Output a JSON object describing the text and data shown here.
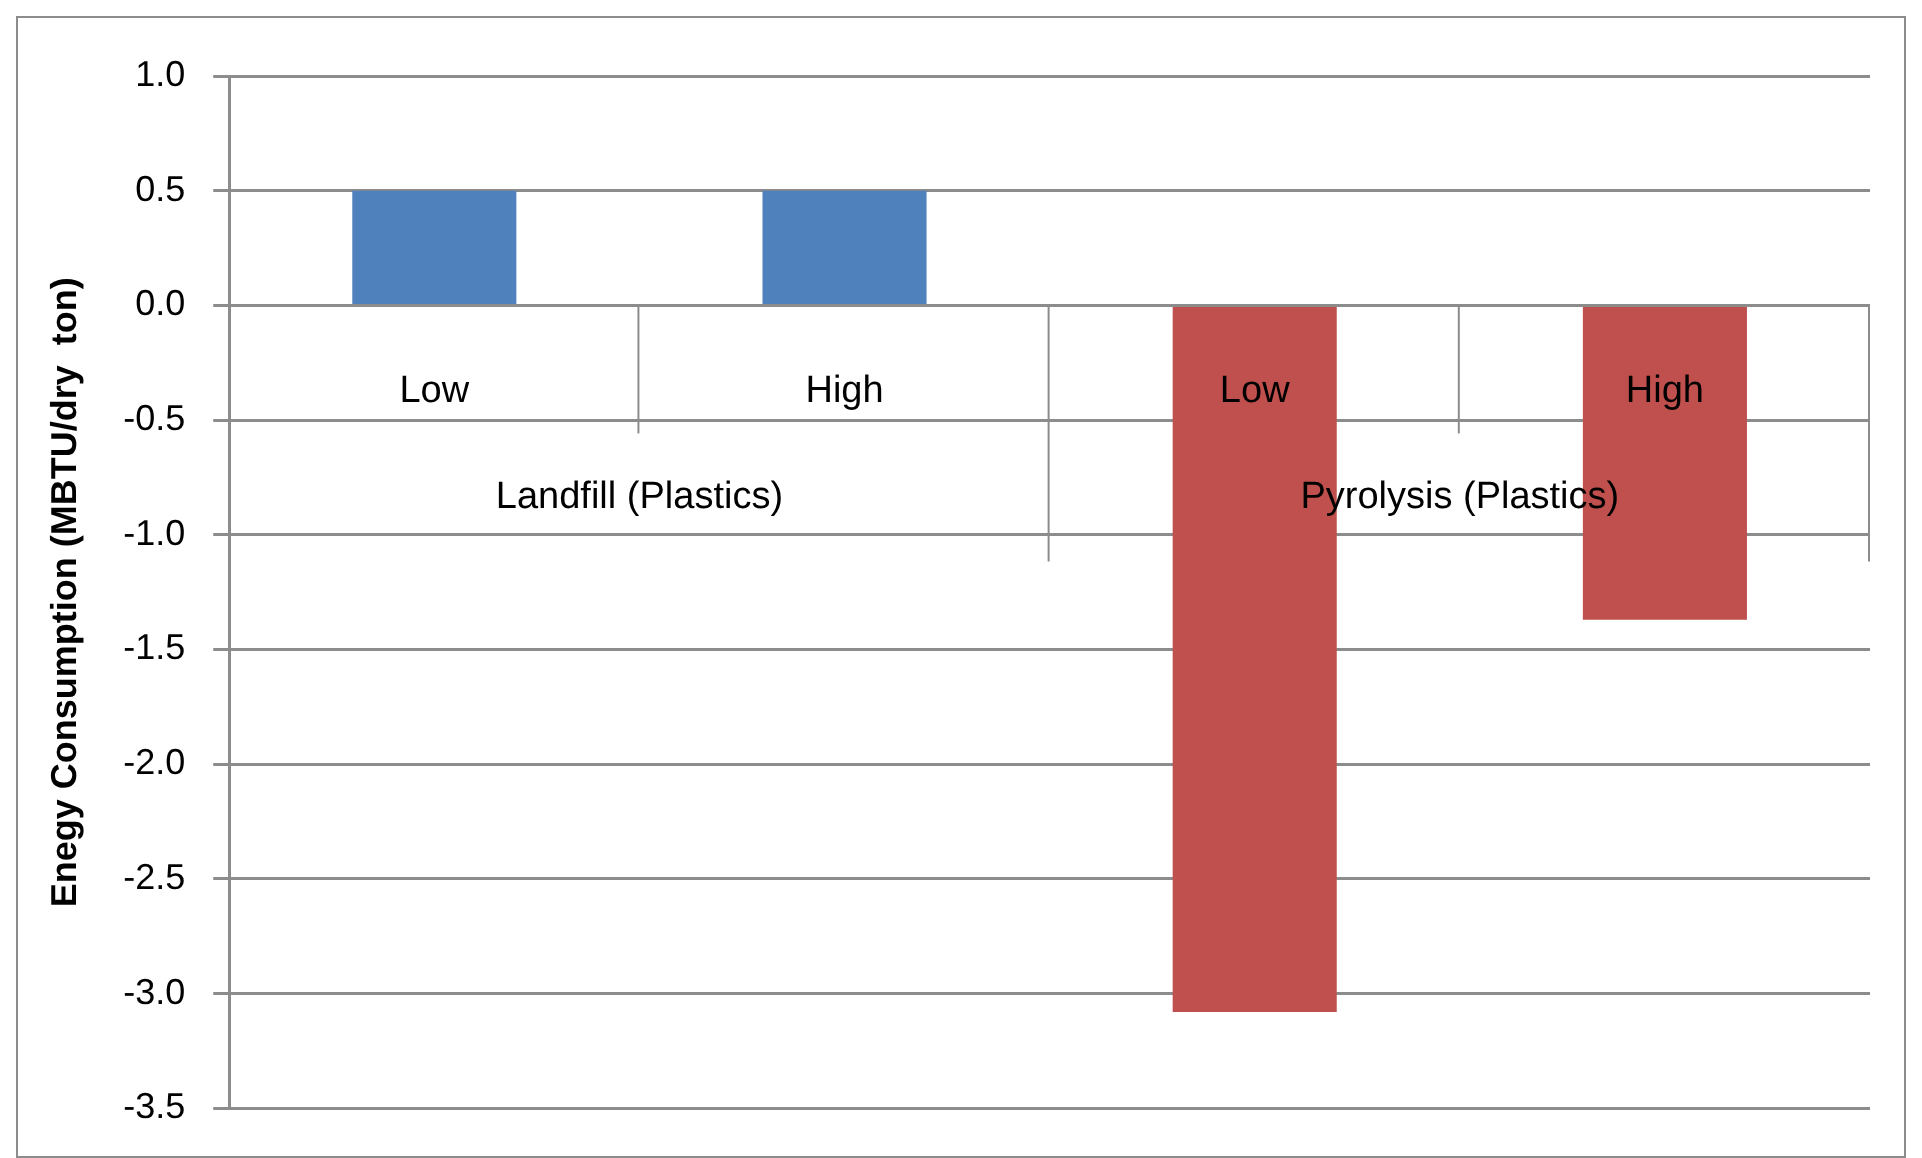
{
  "chart_data": {
    "type": "bar",
    "ylabel": "Enegy Consumption (MBTU/dry  ton)",
    "categories": [
      "Low",
      "High",
      "Low",
      "High"
    ],
    "values": [
      0.5,
      0.5,
      -3.08,
      -1.37
    ],
    "colors": [
      "#4f81bd",
      "#4f81bd",
      "#c0504d",
      "#c0504d"
    ],
    "annotations": [
      "Landfill (Plastics)",
      "Pyrolysis (Plastics)"
    ],
    "ylim": [
      -3.5,
      1.0
    ],
    "yticks": [
      -3.5,
      {
        "value": -3,
        "label": "-3.0"
      },
      -2.5,
      {
        "value": -2,
        "label": "-2.0"
      },
      -1.5,
      {
        "value": -1,
        "label": "-1.0"
      },
      -0.5,
      {
        "value": 0,
        "label": "0.0"
      },
      0.5,
      {
        "value": 1,
        "label": "1.0"
      }
    ],
    "grid": "y",
    "legend": false
  }
}
